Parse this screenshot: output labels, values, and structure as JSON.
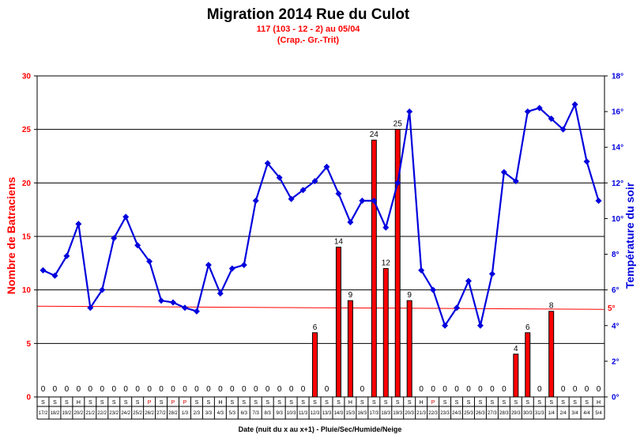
{
  "chart_data": {
    "type": "bar",
    "title": "Migration 2014 Rue du Culot",
    "subtitle_1": "117 (103 - 12 - 2) au 05/04",
    "subtitle_2": "(Crap.- Gr.-Trit)",
    "ylabel": "Nombre de Batraciens",
    "y2label": "Température du soir",
    "xlabel": "Date (nuit du x au x+1) - Pluie/Sec/Humide/Neige",
    "ylim": [
      0,
      30
    ],
    "y2lim": [
      0,
      18
    ],
    "yticks": [
      "0",
      "5",
      "10",
      "15",
      "20",
      "25",
      "30"
    ],
    "y2ticks": [
      "0°",
      "2°",
      "4°",
      "6°",
      "8°",
      "10°",
      "12°",
      "14°",
      "16°",
      "18°"
    ],
    "threshold_label": "5°",
    "threshold_value": 5,
    "grid": true,
    "categories": [
      "17/2",
      "18/2",
      "19/2",
      "20/2",
      "21/2",
      "22/2",
      "23/2",
      "24/2",
      "25/2",
      "26/2",
      "27/2",
      "28/2",
      "1/3",
      "2/3",
      "3/3",
      "4/3",
      "5/3",
      "6/3",
      "7/3",
      "8/3",
      "9/3",
      "10/3",
      "11/3",
      "12/3",
      "13/3",
      "14/3",
      "15/3",
      "16/3",
      "17/3",
      "18/3",
      "19/3",
      "20/3",
      "21/3",
      "22/3",
      "23/3",
      "24/3",
      "25/3",
      "26/3",
      "27/3",
      "28/3",
      "29/3",
      "30/3",
      "31/3",
      "1/4",
      "2/4",
      "3/4",
      "4/4",
      "5/4"
    ],
    "weather": [
      "S",
      "S",
      "S",
      "H",
      "S",
      "S",
      "S",
      "S",
      "S",
      "P",
      "S",
      "P",
      "P",
      "S",
      "S",
      "H",
      "S",
      "S",
      "S",
      "S",
      "S",
      "S",
      "S",
      "S",
      "S",
      "S",
      "H",
      "S",
      "S",
      "S",
      "S",
      "S",
      "H",
      "P",
      "S",
      "S",
      "S",
      "S",
      "S",
      "S",
      "S",
      "S",
      "S",
      "S",
      "S",
      "S",
      "S",
      "H"
    ],
    "weather_colors": {
      "P": "#cc0000"
    },
    "series": [
      {
        "name": "Batraciens",
        "kind": "bar",
        "color": "#ff0000",
        "values": [
          0,
          0,
          0,
          0,
          0,
          0,
          0,
          0,
          0,
          0,
          0,
          0,
          0,
          0,
          0,
          0,
          0,
          0,
          0,
          0,
          0,
          0,
          0,
          6,
          0,
          14,
          9,
          0,
          24,
          12,
          25,
          9,
          0,
          0,
          0,
          0,
          0,
          0,
          0,
          0,
          4,
          6,
          0,
          8,
          0,
          0,
          0,
          0
        ]
      },
      {
        "name": "Température",
        "kind": "line",
        "axis": "right",
        "color": "#0000dd",
        "values": [
          7.1,
          6.8,
          7.9,
          9.7,
          5.0,
          6.0,
          8.9,
          10.1,
          8.5,
          7.6,
          5.4,
          5.3,
          5.0,
          4.8,
          7.4,
          5.8,
          7.2,
          7.4,
          11.0,
          13.1,
          12.3,
          11.1,
          11.6,
          12.1,
          12.9,
          11.4,
          9.8,
          11.0,
          11.0,
          9.5,
          12.0,
          16.0,
          7.1,
          6.0,
          4.0,
          5.0,
          6.5,
          4.0,
          6.9,
          12.6,
          12.1,
          16.0,
          16.2,
          15.6,
          15.0,
          16.4,
          13.2,
          11.0
        ]
      }
    ]
  }
}
